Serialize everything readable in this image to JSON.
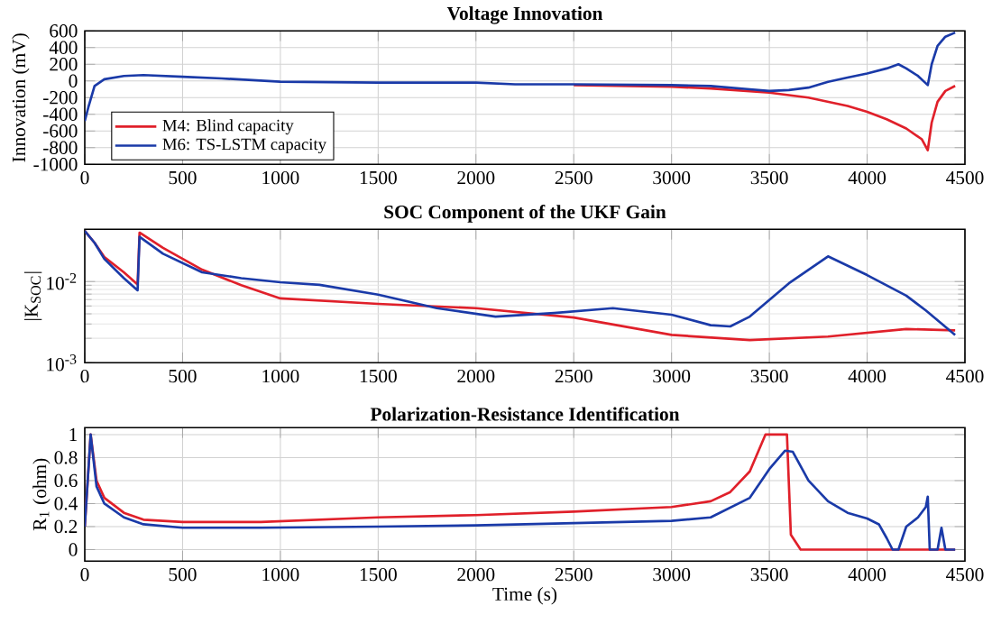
{
  "chart_data": [
    {
      "type": "line",
      "title": "Voltage Innovation",
      "ylabel": "Innovation (mV)",
      "xlim": [
        0,
        4500
      ],
      "xticks": [
        0,
        500,
        1000,
        1500,
        2000,
        2500,
        3000,
        3500,
        4000,
        4500
      ],
      "ylim": [
        -1000,
        600
      ],
      "yticks": [
        -1000,
        -800,
        -600,
        -400,
        -200,
        0,
        200,
        400,
        600
      ],
      "grid": true,
      "legend": "bottom left",
      "marker": "none",
      "line_style": "solid",
      "series": [
        {
          "name": "M4: Blind capacity",
          "color": "#e0202a",
          "x": [
            2500,
            3000,
            3200,
            3500,
            3700,
            3900,
            4000,
            4100,
            4200,
            4280,
            4310,
            4330,
            4360,
            4400,
            4450
          ],
          "values": [
            -50,
            -70,
            -90,
            -140,
            -200,
            -300,
            -370,
            -460,
            -570,
            -700,
            -830,
            -500,
            -250,
            -120,
            -60
          ]
        },
        {
          "name": "M6: TS-LSTM capacity",
          "color": "#1a3aa8",
          "x": [
            0,
            20,
            50,
            100,
            200,
            300,
            500,
            700,
            1000,
            1500,
            2000,
            2200,
            2500,
            3000,
            3200,
            3400,
            3500,
            3600,
            3700,
            3800,
            3900,
            4000,
            4100,
            4160,
            4200,
            4260,
            4310,
            4330,
            4360,
            4400,
            4450
          ],
          "values": [
            -480,
            -300,
            -60,
            20,
            60,
            70,
            50,
            30,
            -10,
            -20,
            -20,
            -40,
            -40,
            -50,
            -60,
            -100,
            -120,
            -110,
            -80,
            -10,
            40,
            90,
            150,
            200,
            150,
            60,
            -50,
            200,
            420,
            530,
            580
          ]
        }
      ]
    },
    {
      "type": "line",
      "title": "SOC Component of the UKF Gain",
      "ylabel": "|K$_{SOC}$|",
      "log": "y",
      "xlim": [
        0,
        4500
      ],
      "xticks": [
        0,
        500,
        1000,
        1500,
        2000,
        2500,
        3000,
        3500,
        4000,
        4500
      ],
      "ylim": [
        0.001,
        0.044
      ],
      "yticks": [
        {
          "value": 0.001,
          "label": "10$^{-3}$"
        },
        {
          "value": 0.01,
          "label": "10$^{-2}$"
        }
      ],
      "grid": true,
      "marker": "none",
      "line_style": "solid",
      "series": [
        {
          "color": "#e0202a",
          "x": [
            0,
            50,
            100,
            200,
            270,
            280,
            400,
            600,
            800,
            1000,
            1500,
            2000,
            2500,
            3000,
            3400,
            3800,
            4200,
            4450
          ],
          "values": [
            0.042,
            0.03,
            0.02,
            0.013,
            0.0092,
            0.04,
            0.026,
            0.014,
            0.009,
            0.0062,
            0.0053,
            0.0047,
            0.0036,
            0.0022,
            0.0019,
            0.0021,
            0.0026,
            0.0025
          ]
        },
        {
          "color": "#1a3aa8",
          "x": [
            0,
            50,
            100,
            200,
            270,
            280,
            400,
            600,
            800,
            1000,
            1200,
            1500,
            1800,
            2100,
            2400,
            2700,
            3000,
            3200,
            3300,
            3400,
            3600,
            3800,
            4000,
            4200,
            4300,
            4450
          ],
          "values": [
            0.042,
            0.03,
            0.019,
            0.011,
            0.0078,
            0.0355,
            0.022,
            0.013,
            0.011,
            0.0098,
            0.0091,
            0.0069,
            0.0047,
            0.0037,
            0.0041,
            0.0047,
            0.0039,
            0.0029,
            0.0028,
            0.0037,
            0.0095,
            0.0204,
            0.012,
            0.0067,
            0.0044,
            0.0022
          ]
        }
      ]
    },
    {
      "type": "line",
      "title": "Polarization-Resistance Identification",
      "xlabel": "Time (s)",
      "ylabel": "R$_{1}$ (ohm)",
      "xlim": [
        0,
        4500
      ],
      "xticks": [
        0,
        500,
        1000,
        1500,
        2000,
        2500,
        3000,
        3500,
        4000,
        4500
      ],
      "ylim": [
        -0.1,
        1.06
      ],
      "yticks": [
        0,
        0.2,
        0.4,
        0.6,
        0.8,
        1
      ],
      "grid": true,
      "marker": "none",
      "line_style": "solid",
      "series": [
        {
          "color": "#e0202a",
          "x": [
            0,
            30,
            60,
            100,
            200,
            300,
            500,
            900,
            1500,
            2000,
            2500,
            3000,
            3200,
            3300,
            3400,
            3480,
            3590,
            3610,
            3660,
            4450
          ],
          "values": [
            0.2,
            1.0,
            0.6,
            0.45,
            0.32,
            0.26,
            0.24,
            0.24,
            0.28,
            0.3,
            0.33,
            0.37,
            0.42,
            0.5,
            0.68,
            1.0,
            1.0,
            0.13,
            0,
            0
          ]
        },
        {
          "color": "#1a3aa8",
          "x": [
            0,
            30,
            60,
            100,
            200,
            300,
            500,
            900,
            1500,
            2000,
            2500,
            3000,
            3200,
            3400,
            3500,
            3580,
            3620,
            3700,
            3800,
            3900,
            4000,
            4060,
            4100,
            4130,
            4160,
            4200,
            4260,
            4300,
            4310,
            4320,
            4360,
            4380,
            4400,
            4450
          ],
          "values": [
            0.2,
            1.0,
            0.55,
            0.4,
            0.28,
            0.22,
            0.19,
            0.19,
            0.2,
            0.21,
            0.23,
            0.25,
            0.28,
            0.45,
            0.7,
            0.86,
            0.85,
            0.6,
            0.42,
            0.32,
            0.27,
            0.22,
            0.1,
            0,
            0,
            0.2,
            0.28,
            0.37,
            0.46,
            0,
            0,
            0.19,
            0,
            0
          ]
        }
      ]
    }
  ]
}
